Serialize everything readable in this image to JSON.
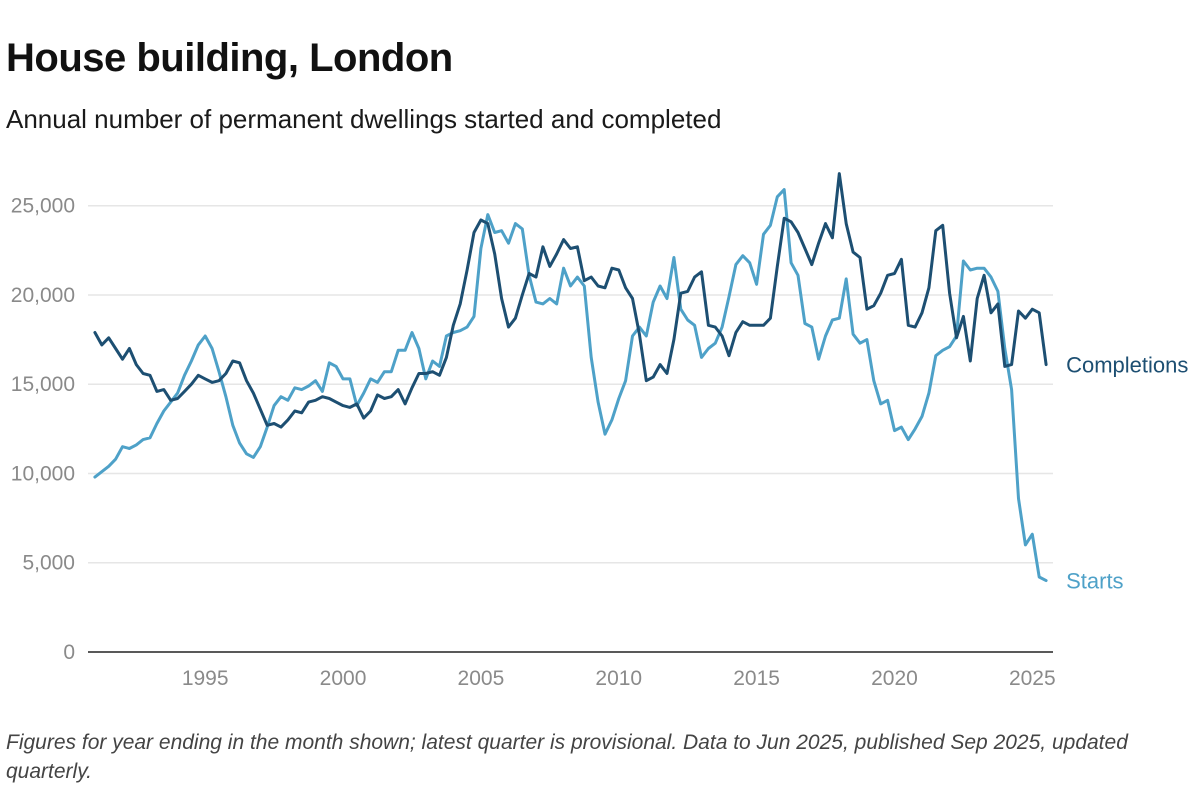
{
  "header": {
    "title": "House building, London",
    "subtitle": "Annual number of permanent dwellings started and completed"
  },
  "footnote": "Figures for year ending in the month shown; latest quarter is provisional. Data to Jun 2025, published Sep 2025, updated quarterly.",
  "colors": {
    "completions": "#1d4f72",
    "starts": "#4ea1c8",
    "grid": "#e6e6e6",
    "axis": "#222222"
  },
  "chart_data": {
    "type": "line",
    "title": "House building, London",
    "subtitle": "Annual number of permanent dwellings started and completed",
    "xlim": [
      1990.75,
      2025.75
    ],
    "ylim": [
      0,
      27000
    ],
    "x_ticks": [
      1995,
      2000,
      2005,
      2010,
      2015,
      2020,
      2025
    ],
    "x_tick_labels": [
      "1995",
      "2000",
      "2005",
      "2010",
      "2015",
      "2020",
      "2025"
    ],
    "y_ticks": [
      0,
      5000,
      10000,
      15000,
      20000,
      25000
    ],
    "y_tick_labels": [
      "0",
      "5,000",
      "10,000",
      "15,000",
      "20,000",
      "25,000"
    ],
    "grid": "horizontal",
    "legend": "inline-labels-right",
    "series": [
      {
        "name": "Completions",
        "color": "#1d4f72",
        "points": [
          [
            1991.0,
            17900
          ],
          [
            1991.25,
            17200
          ],
          [
            1991.5,
            17600
          ],
          [
            1991.75,
            17000
          ],
          [
            1992.0,
            16400
          ],
          [
            1992.25,
            17000
          ],
          [
            1992.5,
            16100
          ],
          [
            1992.75,
            15600
          ],
          [
            1993.0,
            15500
          ],
          [
            1993.25,
            14600
          ],
          [
            1993.5,
            14700
          ],
          [
            1993.75,
            14100
          ],
          [
            1994.0,
            14200
          ],
          [
            1994.25,
            14600
          ],
          [
            1994.5,
            15000
          ],
          [
            1994.75,
            15500
          ],
          [
            1995.0,
            15300
          ],
          [
            1995.25,
            15100
          ],
          [
            1995.5,
            15200
          ],
          [
            1995.75,
            15600
          ],
          [
            1996.0,
            16300
          ],
          [
            1996.25,
            16200
          ],
          [
            1996.5,
            15200
          ],
          [
            1996.75,
            14500
          ],
          [
            1997.0,
            13600
          ],
          [
            1997.25,
            12700
          ],
          [
            1997.5,
            12800
          ],
          [
            1997.75,
            12600
          ],
          [
            1998.0,
            13000
          ],
          [
            1998.25,
            13500
          ],
          [
            1998.5,
            13400
          ],
          [
            1998.75,
            14000
          ],
          [
            1999.0,
            14100
          ],
          [
            1999.25,
            14300
          ],
          [
            1999.5,
            14200
          ],
          [
            1999.75,
            14000
          ],
          [
            2000.0,
            13800
          ],
          [
            2000.25,
            13700
          ],
          [
            2000.5,
            13900
          ],
          [
            2000.75,
            13100
          ],
          [
            2001.0,
            13500
          ],
          [
            2001.25,
            14400
          ],
          [
            2001.5,
            14200
          ],
          [
            2001.75,
            14300
          ],
          [
            2002.0,
            14700
          ],
          [
            2002.25,
            13900
          ],
          [
            2002.5,
            14800
          ],
          [
            2002.75,
            15600
          ],
          [
            2003.0,
            15600
          ],
          [
            2003.25,
            15700
          ],
          [
            2003.5,
            15500
          ],
          [
            2003.75,
            16500
          ],
          [
            2004.0,
            18300
          ],
          [
            2004.25,
            19500
          ],
          [
            2004.5,
            21400
          ],
          [
            2004.75,
            23500
          ],
          [
            2005.0,
            24200
          ],
          [
            2005.25,
            24000
          ],
          [
            2005.5,
            22300
          ],
          [
            2005.75,
            19800
          ],
          [
            2006.0,
            18200
          ],
          [
            2006.25,
            18700
          ],
          [
            2006.5,
            20000
          ],
          [
            2006.75,
            21200
          ],
          [
            2007.0,
            21000
          ],
          [
            2007.25,
            22700
          ],
          [
            2007.5,
            21600
          ],
          [
            2007.75,
            22300
          ],
          [
            2008.0,
            23100
          ],
          [
            2008.25,
            22600
          ],
          [
            2008.5,
            22700
          ],
          [
            2008.75,
            20800
          ],
          [
            2009.0,
            21000
          ],
          [
            2009.25,
            20500
          ],
          [
            2009.5,
            20400
          ],
          [
            2009.75,
            21500
          ],
          [
            2010.0,
            21400
          ],
          [
            2010.25,
            20400
          ],
          [
            2010.5,
            19800
          ],
          [
            2010.75,
            17800
          ],
          [
            2011.0,
            15200
          ],
          [
            2011.25,
            15400
          ],
          [
            2011.5,
            16100
          ],
          [
            2011.75,
            15600
          ],
          [
            2012.0,
            17500
          ],
          [
            2012.25,
            20100
          ],
          [
            2012.5,
            20200
          ],
          [
            2012.75,
            21000
          ],
          [
            2013.0,
            21300
          ],
          [
            2013.25,
            18300
          ],
          [
            2013.5,
            18200
          ],
          [
            2013.75,
            17700
          ],
          [
            2014.0,
            16600
          ],
          [
            2014.25,
            17900
          ],
          [
            2014.5,
            18500
          ],
          [
            2014.75,
            18300
          ],
          [
            2015.0,
            18300
          ],
          [
            2015.25,
            18300
          ],
          [
            2015.5,
            18700
          ],
          [
            2015.75,
            21600
          ],
          [
            2016.0,
            24300
          ],
          [
            2016.25,
            24100
          ],
          [
            2016.5,
            23500
          ],
          [
            2016.75,
            22600
          ],
          [
            2017.0,
            21700
          ],
          [
            2017.25,
            22900
          ],
          [
            2017.5,
            24000
          ],
          [
            2017.75,
            23200
          ],
          [
            2018.0,
            26800
          ],
          [
            2018.25,
            24000
          ],
          [
            2018.5,
            22400
          ],
          [
            2018.75,
            22100
          ],
          [
            2019.0,
            19200
          ],
          [
            2019.25,
            19400
          ],
          [
            2019.5,
            20100
          ],
          [
            2019.75,
            21100
          ],
          [
            2020.0,
            21200
          ],
          [
            2020.25,
            22000
          ],
          [
            2020.5,
            18300
          ],
          [
            2020.75,
            18200
          ],
          [
            2021.0,
            19000
          ],
          [
            2021.25,
            20400
          ],
          [
            2021.5,
            23600
          ],
          [
            2021.75,
            23900
          ],
          [
            2022.0,
            20100
          ],
          [
            2022.25,
            17600
          ],
          [
            2022.5,
            18800
          ],
          [
            2022.75,
            16300
          ],
          [
            2023.0,
            19800
          ],
          [
            2023.25,
            21100
          ],
          [
            2023.5,
            19000
          ],
          [
            2023.75,
            19500
          ],
          [
            2024.0,
            16000
          ],
          [
            2024.25,
            16100
          ],
          [
            2024.5,
            19100
          ],
          [
            2024.75,
            18700
          ],
          [
            2025.0,
            19200
          ],
          [
            2025.25,
            19000
          ],
          [
            2025.5,
            16100
          ]
        ]
      },
      {
        "name": "Starts",
        "color": "#4ea1c8",
        "points": [
          [
            1991.0,
            9800
          ],
          [
            1991.25,
            10100
          ],
          [
            1991.5,
            10400
          ],
          [
            1991.75,
            10800
          ],
          [
            1992.0,
            11500
          ],
          [
            1992.25,
            11400
          ],
          [
            1992.5,
            11600
          ],
          [
            1992.75,
            11900
          ],
          [
            1993.0,
            12000
          ],
          [
            1993.25,
            12800
          ],
          [
            1993.5,
            13500
          ],
          [
            1993.75,
            14000
          ],
          [
            1994.0,
            14500
          ],
          [
            1994.25,
            15500
          ],
          [
            1994.5,
            16300
          ],
          [
            1994.75,
            17200
          ],
          [
            1995.0,
            17700
          ],
          [
            1995.25,
            17000
          ],
          [
            1995.5,
            15700
          ],
          [
            1995.75,
            14300
          ],
          [
            1996.0,
            12700
          ],
          [
            1996.25,
            11700
          ],
          [
            1996.5,
            11100
          ],
          [
            1996.75,
            10900
          ],
          [
            1997.0,
            11500
          ],
          [
            1997.25,
            12600
          ],
          [
            1997.5,
            13800
          ],
          [
            1997.75,
            14300
          ],
          [
            1998.0,
            14100
          ],
          [
            1998.25,
            14800
          ],
          [
            1998.5,
            14700
          ],
          [
            1998.75,
            14900
          ],
          [
            1999.0,
            15200
          ],
          [
            1999.25,
            14600
          ],
          [
            1999.5,
            16200
          ],
          [
            1999.75,
            16000
          ],
          [
            2000.0,
            15300
          ],
          [
            2000.25,
            15300
          ],
          [
            2000.5,
            13800
          ],
          [
            2000.75,
            14500
          ],
          [
            2001.0,
            15300
          ],
          [
            2001.25,
            15100
          ],
          [
            2001.5,
            15700
          ],
          [
            2001.75,
            15700
          ],
          [
            2002.0,
            16900
          ],
          [
            2002.25,
            16900
          ],
          [
            2002.5,
            17900
          ],
          [
            2002.75,
            17000
          ],
          [
            2003.0,
            15300
          ],
          [
            2003.25,
            16300
          ],
          [
            2003.5,
            16000
          ],
          [
            2003.75,
            17700
          ],
          [
            2004.0,
            17900
          ],
          [
            2004.25,
            18000
          ],
          [
            2004.5,
            18200
          ],
          [
            2004.75,
            18800
          ],
          [
            2005.0,
            22600
          ],
          [
            2005.25,
            24500
          ],
          [
            2005.5,
            23500
          ],
          [
            2005.75,
            23600
          ],
          [
            2006.0,
            22900
          ],
          [
            2006.25,
            24000
          ],
          [
            2006.5,
            23700
          ],
          [
            2006.75,
            21100
          ],
          [
            2007.0,
            19600
          ],
          [
            2007.25,
            19500
          ],
          [
            2007.5,
            19800
          ],
          [
            2007.75,
            19500
          ],
          [
            2008.0,
            21500
          ],
          [
            2008.25,
            20500
          ],
          [
            2008.5,
            21000
          ],
          [
            2008.75,
            20500
          ],
          [
            2009.0,
            16500
          ],
          [
            2009.25,
            14000
          ],
          [
            2009.5,
            12200
          ],
          [
            2009.75,
            13000
          ],
          [
            2010.0,
            14200
          ],
          [
            2010.25,
            15200
          ],
          [
            2010.5,
            17700
          ],
          [
            2010.75,
            18200
          ],
          [
            2011.0,
            17700
          ],
          [
            2011.25,
            19600
          ],
          [
            2011.5,
            20500
          ],
          [
            2011.75,
            19800
          ],
          [
            2012.0,
            22100
          ],
          [
            2012.25,
            19200
          ],
          [
            2012.5,
            18600
          ],
          [
            2012.75,
            18300
          ],
          [
            2013.0,
            16500
          ],
          [
            2013.25,
            17000
          ],
          [
            2013.5,
            17300
          ],
          [
            2013.75,
            18200
          ],
          [
            2014.0,
            19900
          ],
          [
            2014.25,
            21700
          ],
          [
            2014.5,
            22200
          ],
          [
            2014.75,
            21800
          ],
          [
            2015.0,
            20600
          ],
          [
            2015.25,
            23400
          ],
          [
            2015.5,
            23900
          ],
          [
            2015.75,
            25500
          ],
          [
            2016.0,
            25900
          ],
          [
            2016.25,
            21800
          ],
          [
            2016.5,
            21100
          ],
          [
            2016.75,
            18400
          ],
          [
            2017.0,
            18200
          ],
          [
            2017.25,
            16400
          ],
          [
            2017.5,
            17700
          ],
          [
            2017.75,
            18600
          ],
          [
            2018.0,
            18700
          ],
          [
            2018.25,
            20900
          ],
          [
            2018.5,
            17800
          ],
          [
            2018.75,
            17300
          ],
          [
            2019.0,
            17500
          ],
          [
            2019.25,
            15200
          ],
          [
            2019.5,
            13900
          ],
          [
            2019.75,
            14100
          ],
          [
            2020.0,
            12400
          ],
          [
            2020.25,
            12600
          ],
          [
            2020.5,
            11900
          ],
          [
            2020.75,
            12500
          ],
          [
            2021.0,
            13200
          ],
          [
            2021.25,
            14500
          ],
          [
            2021.5,
            16600
          ],
          [
            2021.75,
            16900
          ],
          [
            2022.0,
            17100
          ],
          [
            2022.25,
            17700
          ],
          [
            2022.5,
            21900
          ],
          [
            2022.75,
            21400
          ],
          [
            2023.0,
            21500
          ],
          [
            2023.25,
            21500
          ],
          [
            2023.5,
            21000
          ],
          [
            2023.75,
            20200
          ],
          [
            2024.0,
            17000
          ],
          [
            2024.25,
            14700
          ],
          [
            2024.5,
            8600
          ],
          [
            2024.75,
            6000
          ],
          [
            2025.0,
            6600
          ],
          [
            2025.25,
            4200
          ],
          [
            2025.5,
            4000
          ]
        ]
      }
    ]
  }
}
